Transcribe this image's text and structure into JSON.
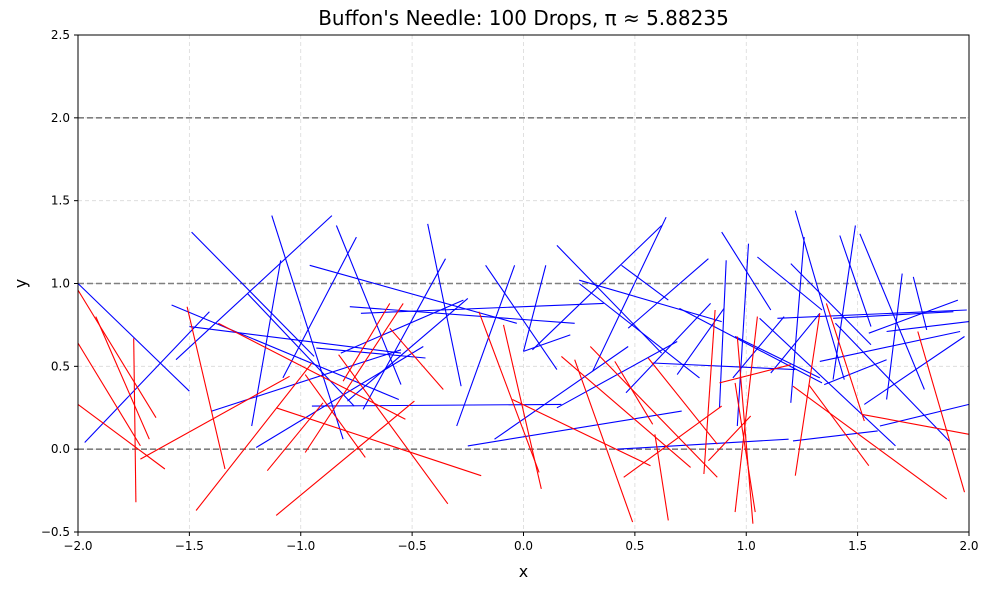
{
  "chart_data": {
    "type": "line",
    "title": "Buffon's Needle: 100 Drops, π ≈ 5.88235",
    "xlabel": "x",
    "ylabel": "y",
    "xlim": [
      -2.0,
      2.0
    ],
    "ylim": [
      -0.5,
      2.5
    ],
    "xticks": [
      "−2.0",
      "−1.5",
      "−1.0",
      "−0.5",
      "0.0",
      "0.5",
      "1.0",
      "1.5",
      "2.0"
    ],
    "yticks": [
      "−0.5",
      "0.0",
      "0.5",
      "1.0",
      "1.5",
      "2.0",
      "2.5"
    ],
    "xtick_values": [
      -2.0,
      -1.5,
      -1.0,
      -0.5,
      0.0,
      0.5,
      1.0,
      1.5,
      2.0
    ],
    "ytick_values": [
      -0.5,
      0.0,
      0.5,
      1.0,
      1.5,
      2.0,
      2.5
    ],
    "grid": true,
    "reference_lines_y": [
      0.0,
      1.0,
      2.0
    ],
    "colors": {
      "crossing": "#ff0000",
      "not_crossing": "#0000ff",
      "reference": "#7f7f7f",
      "grid": "#d9d9d9"
    },
    "series": [
      {
        "color": "#0000ff",
        "segments": [
          [
            [
              -2.0,
              1.0
            ],
            [
              -1.5,
              0.35
            ]
          ],
          [
            [
              -1.49,
              1.31
            ],
            [
              -0.94,
              0.56
            ]
          ],
          [
            [
              -1.13,
              1.41
            ],
            [
              -0.81,
              0.06
            ]
          ],
          [
            [
              -0.86,
              1.41
            ],
            [
              -1.56,
              0.54
            ]
          ],
          [
            [
              -1.97,
              0.04
            ],
            [
              -1.41,
              0.83
            ]
          ],
          [
            [
              -1.58,
              0.87
            ],
            [
              -0.56,
              0.3
            ]
          ],
          [
            [
              -1.5,
              0.74
            ],
            [
              -0.55,
              0.58
            ]
          ],
          [
            [
              -1.4,
              0.23
            ],
            [
              -0.55,
              0.6
            ]
          ],
          [
            [
              -1.24,
              0.94
            ],
            [
              -0.76,
              0.26
            ]
          ],
          [
            [
              -1.09,
              1.14
            ],
            [
              -1.22,
              0.14
            ]
          ],
          [
            [
              -0.84,
              1.35
            ],
            [
              -0.55,
              0.39
            ]
          ],
          [
            [
              -0.75,
              1.28
            ],
            [
              -1.08,
              0.43
            ]
          ],
          [
            [
              -1.2,
              0.01
            ],
            [
              -0.45,
              0.62
            ]
          ],
          [
            [
              -0.43,
              1.36
            ],
            [
              -0.28,
              0.38
            ]
          ],
          [
            [
              -0.35,
              1.15
            ],
            [
              -0.72,
              0.24
            ]
          ],
          [
            [
              -0.93,
              0.61
            ],
            [
              -0.44,
              0.55
            ]
          ],
          [
            [
              -0.96,
              1.11
            ],
            [
              -0.03,
              0.76
            ]
          ],
          [
            [
              -0.78,
              0.86
            ],
            [
              0.23,
              0.76
            ]
          ],
          [
            [
              -0.73,
              0.82
            ],
            [
              0.36,
              0.88
            ]
          ],
          [
            [
              -0.79,
              0.29
            ],
            [
              -0.25,
              0.91
            ]
          ],
          [
            [
              -0.82,
              0.58
            ],
            [
              -0.27,
              0.9
            ]
          ],
          [
            [
              -0.17,
              1.11
            ],
            [
              0.15,
              0.48
            ]
          ],
          [
            [
              -0.3,
              0.14
            ],
            [
              -0.04,
              1.11
            ]
          ],
          [
            [
              0.0,
              0.59
            ],
            [
              0.21,
              0.69
            ]
          ],
          [
            [
              0.0,
              0.59
            ],
            [
              0.1,
              1.11
            ]
          ],
          [
            [
              -0.25,
              0.02
            ],
            [
              0.71,
              0.23
            ]
          ],
          [
            [
              -0.95,
              0.26
            ],
            [
              0.17,
              0.27
            ]
          ],
          [
            [
              -0.13,
              0.06
            ],
            [
              0.47,
              0.62
            ]
          ],
          [
            [
              0.15,
              0.25
            ],
            [
              0.69,
              0.65
            ]
          ],
          [
            [
              0.15,
              1.23
            ],
            [
              0.62,
              0.58
            ]
          ],
          [
            [
              0.04,
              0.6
            ],
            [
              0.62,
              1.35
            ]
          ],
          [
            [
              0.47,
              0.73
            ],
            [
              0.83,
              1.15
            ]
          ],
          [
            [
              0.31,
              0.47
            ],
            [
              0.64,
              1.4
            ]
          ],
          [
            [
              0.25,
              1.0
            ],
            [
              0.79,
              0.43
            ]
          ],
          [
            [
              0.44,
              1.11
            ],
            [
              0.65,
              0.9
            ]
          ],
          [
            [
              0.25,
              1.02
            ],
            [
              0.89,
              0.77
            ]
          ],
          [
            [
              0.58,
              0.52
            ],
            [
              1.22,
              0.48
            ]
          ],
          [
            [
              0.7,
              0.85
            ],
            [
              1.34,
              0.4
            ]
          ],
          [
            [
              0.84,
              0.88
            ],
            [
              0.46,
              0.34
            ]
          ],
          [
            [
              0.89,
              1.31
            ],
            [
              1.11,
              0.84
            ]
          ],
          [
            [
              0.91,
              1.14
            ],
            [
              0.88,
              0.25
            ]
          ],
          [
            [
              1.01,
              1.24
            ],
            [
              0.96,
              0.14
            ]
          ],
          [
            [
              0.9,
              0.85
            ],
            [
              0.69,
              0.45
            ]
          ],
          [
            [
              1.05,
              1.16
            ],
            [
              1.34,
              0.84
            ]
          ],
          [
            [
              1.14,
              0.79
            ],
            [
              1.99,
              0.84
            ]
          ],
          [
            [
              1.2,
              1.12
            ],
            [
              1.56,
              0.63
            ]
          ],
          [
            [
              1.22,
              1.44
            ],
            [
              1.44,
              0.42
            ]
          ],
          [
            [
              1.26,
              1.28
            ],
            [
              1.2,
              0.28
            ]
          ],
          [
            [
              1.33,
              0.82
            ],
            [
              1.11,
              0.46
            ]
          ],
          [
            [
              1.33,
              0.53
            ],
            [
              1.96,
              0.71
            ]
          ],
          [
            [
              1.35,
              0.39
            ],
            [
              1.63,
              0.54
            ]
          ],
          [
            [
              1.39,
              0.79
            ],
            [
              1.93,
              0.83
            ]
          ],
          [
            [
              1.42,
              1.29
            ],
            [
              1.56,
              0.74
            ]
          ],
          [
            [
              1.49,
              1.35
            ],
            [
              1.39,
              0.42
            ]
          ],
          [
            [
              1.51,
              1.3
            ],
            [
              1.8,
              0.36
            ]
          ],
          [
            [
              1.55,
              0.7
            ],
            [
              1.95,
              0.9
            ]
          ],
          [
            [
              1.63,
              0.71
            ],
            [
              2.0,
              0.77
            ]
          ],
          [
            [
              1.7,
              1.06
            ],
            [
              1.63,
              0.3
            ]
          ],
          [
            [
              1.75,
              1.04
            ],
            [
              1.81,
              0.72
            ]
          ],
          [
            [
              1.4,
              0.76
            ],
            [
              1.91,
              0.05
            ]
          ],
          [
            [
              1.53,
              0.27
            ],
            [
              1.98,
              0.68
            ]
          ],
          [
            [
              1.6,
              0.14
            ],
            [
              2.0,
              0.27
            ]
          ],
          [
            [
              1.21,
              0.05
            ],
            [
              1.59,
              0.11
            ]
          ],
          [
            [
              1.06,
              0.79
            ],
            [
              1.67,
              0.02
            ]
          ],
          [
            [
              0.95,
              0.68
            ],
            [
              1.33,
              0.43
            ]
          ],
          [
            [
              0.94,
              0.43
            ],
            [
              1.17,
              0.8
            ]
          ],
          [
            [
              0.42,
              0.0
            ],
            [
              1.19,
              0.06
            ]
          ]
        ]
      },
      {
        "color": "#ff0000",
        "segments": [
          [
            [
              -2.0,
              0.96
            ],
            [
              -1.65,
              0.19
            ]
          ],
          [
            [
              -1.92,
              0.8
            ],
            [
              -1.68,
              0.06
            ]
          ],
          [
            [
              -2.0,
              0.64
            ],
            [
              -1.72,
              0.02
            ]
          ],
          [
            [
              -2.0,
              0.27
            ],
            [
              -1.61,
              -0.12
            ]
          ],
          [
            [
              -1.75,
              0.67
            ],
            [
              -1.74,
              -0.32
            ]
          ],
          [
            [
              -1.72,
              -0.06
            ],
            [
              -1.05,
              0.44
            ]
          ],
          [
            [
              -1.51,
              0.86
            ],
            [
              -1.34,
              -0.12
            ]
          ],
          [
            [
              -1.47,
              -0.37
            ],
            [
              -0.95,
              0.52
            ]
          ],
          [
            [
              -1.37,
              0.76
            ],
            [
              -0.53,
              0.18
            ]
          ],
          [
            [
              -1.15,
              -0.13
            ],
            [
              -0.9,
              0.28
            ]
          ],
          [
            [
              -1.11,
              -0.4
            ],
            [
              -0.49,
              0.29
            ]
          ],
          [
            [
              -1.11,
              0.25
            ],
            [
              -0.19,
              -0.16
            ]
          ],
          [
            [
              -0.98,
              -0.02
            ],
            [
              -0.54,
              0.88
            ]
          ],
          [
            [
              -0.83,
              0.57
            ],
            [
              -0.34,
              -0.33
            ]
          ],
          [
            [
              -0.81,
              0.41
            ],
            [
              -0.6,
              0.88
            ]
          ],
          [
            [
              -0.6,
              0.73
            ],
            [
              -0.36,
              0.36
            ]
          ],
          [
            [
              -0.98,
              0.45
            ],
            [
              -0.71,
              -0.05
            ]
          ],
          [
            [
              -0.2,
              0.83
            ],
            [
              0.07,
              -0.14
            ]
          ],
          [
            [
              -0.09,
              0.75
            ],
            [
              0.08,
              -0.24
            ]
          ],
          [
            [
              -0.05,
              0.3
            ],
            [
              0.57,
              -0.1
            ]
          ],
          [
            [
              0.17,
              0.56
            ],
            [
              0.75,
              -0.11
            ]
          ],
          [
            [
              0.23,
              0.54
            ],
            [
              0.49,
              -0.44
            ]
          ],
          [
            [
              0.3,
              0.62
            ],
            [
              0.87,
              -0.17
            ]
          ],
          [
            [
              0.41,
              0.53
            ],
            [
              0.58,
              0.15
            ]
          ],
          [
            [
              0.45,
              -0.17
            ],
            [
              0.89,
              0.26
            ]
          ],
          [
            [
              0.56,
              0.55
            ],
            [
              0.87,
              0.03
            ]
          ],
          [
            [
              0.59,
              0.09
            ],
            [
              0.65,
              -0.43
            ]
          ],
          [
            [
              0.81,
              -0.15
            ],
            [
              0.86,
              0.84
            ]
          ],
          [
            [
              0.83,
              -0.07
            ],
            [
              1.02,
              0.2
            ]
          ],
          [
            [
              0.96,
              0.68
            ],
            [
              1.03,
              -0.45
            ]
          ],
          [
            [
              0.95,
              0.4
            ],
            [
              1.04,
              -0.38
            ]
          ],
          [
            [
              1.05,
              0.8
            ],
            [
              0.95,
              -0.38
            ]
          ],
          [
            [
              1.22,
              -0.16
            ],
            [
              1.33,
              0.82
            ]
          ],
          [
            [
              1.28,
              0.39
            ],
            [
              1.55,
              -0.1
            ]
          ],
          [
            [
              1.36,
              0.88
            ],
            [
              1.53,
              0.17
            ]
          ],
          [
            [
              1.21,
              0.38
            ],
            [
              1.9,
              -0.3
            ]
          ],
          [
            [
              1.52,
              0.21
            ],
            [
              2.0,
              0.09
            ]
          ],
          [
            [
              1.77,
              0.71
            ],
            [
              1.98,
              -0.26
            ]
          ],
          [
            [
              0.88,
              0.4
            ],
            [
              1.2,
              0.51
            ]
          ]
        ]
      }
    ]
  }
}
